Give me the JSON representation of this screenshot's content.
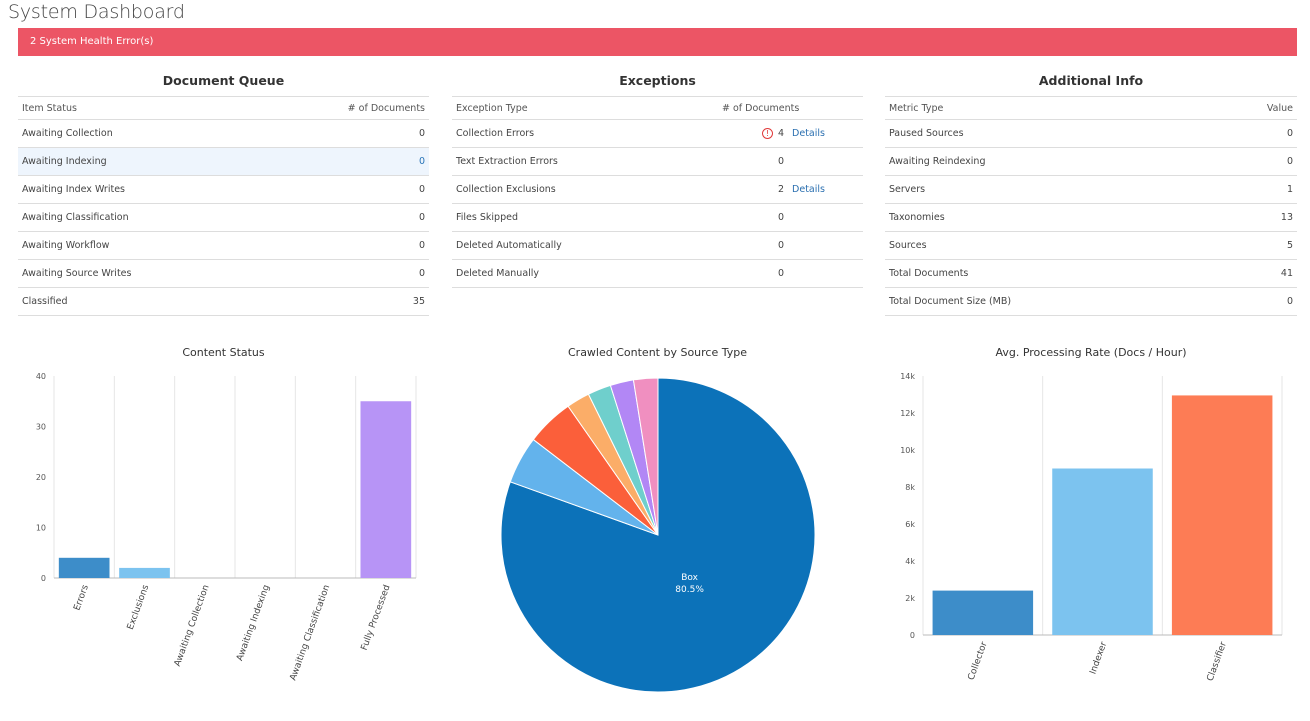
{
  "page": {
    "title": "System Dashboard"
  },
  "alert": {
    "text": "2 System Health Error(s)"
  },
  "document_queue": {
    "title": "Document Queue",
    "headers": [
      "Item Status",
      "# of Documents"
    ],
    "rows": [
      {
        "label": "Awaiting Collection",
        "value": "0"
      },
      {
        "label": "Awaiting Indexing",
        "value": "0"
      },
      {
        "label": "Awaiting Index Writes",
        "value": "0"
      },
      {
        "label": "Awaiting Classification",
        "value": "0"
      },
      {
        "label": "Awaiting Workflow",
        "value": "0"
      },
      {
        "label": "Awaiting Source Writes",
        "value": "0"
      },
      {
        "label": "Classified",
        "value": "35"
      }
    ]
  },
  "exceptions": {
    "title": "Exceptions",
    "headers": [
      "Exception Type",
      "# of Documents"
    ],
    "details_label": "Details",
    "rows": [
      {
        "label": "Collection Errors",
        "value": "4"
      },
      {
        "label": "Text Extraction Errors",
        "value": "0"
      },
      {
        "label": "Collection Exclusions",
        "value": "2"
      },
      {
        "label": "Files Skipped",
        "value": "0"
      },
      {
        "label": "Deleted Automatically",
        "value": "0"
      },
      {
        "label": "Deleted Manually",
        "value": "0"
      }
    ]
  },
  "additional_info": {
    "title": "Additional Info",
    "headers": [
      "Metric Type",
      "Value"
    ],
    "rows": [
      {
        "label": "Paused Sources",
        "value": "0"
      },
      {
        "label": "Awaiting Reindexing",
        "value": "0"
      },
      {
        "label": "Servers",
        "value": "1"
      },
      {
        "label": "Taxonomies",
        "value": "13"
      },
      {
        "label": "Sources",
        "value": "5"
      },
      {
        "label": "Total Documents",
        "value": "41"
      },
      {
        "label": "Total Document Size (MB)",
        "value": "0"
      }
    ]
  },
  "chart_data": [
    {
      "type": "bar",
      "title": "Content Status",
      "categories": [
        "Errors",
        "Exclusions",
        "Awaiting Collection",
        "Awaiting Indexing",
        "Awaiting Classification",
        "Fully Processed"
      ],
      "values": [
        4,
        2,
        0,
        0,
        0,
        35
      ],
      "colors": [
        "#3d8dc9",
        "#7cc3ef",
        "#999999",
        "#999999",
        "#999999",
        "#b794f6"
      ],
      "ylim": [
        0,
        40
      ],
      "yticks": [
        "0",
        "10",
        "20",
        "30",
        "40"
      ],
      "grid": true
    },
    {
      "type": "pie",
      "title": "Crawled Content by Source Type",
      "slices": [
        {
          "label": "Box",
          "value": 80.5,
          "display": "80.5%",
          "color": "#0c72b9"
        },
        {
          "label": "",
          "value": 4.9,
          "color": "#63b3ec"
        },
        {
          "label": "",
          "value": 4.9,
          "color": "#fb5f3a"
        },
        {
          "label": "",
          "value": 2.4,
          "color": "#fbad68"
        },
        {
          "label": "",
          "value": 2.4,
          "color": "#6fcfcc"
        },
        {
          "label": "",
          "value": 2.4,
          "color": "#b287f5"
        },
        {
          "label": "",
          "value": 2.5,
          "color": "#f08fc0"
        }
      ]
    },
    {
      "type": "bar",
      "title": "Avg. Processing Rate (Docs / Hour)",
      "categories": [
        "Collector",
        "Indexer",
        "Classifier"
      ],
      "values": [
        2400,
        9000,
        12950
      ],
      "colors": [
        "#3d8dc9",
        "#7cc3ef",
        "#fd7c55"
      ],
      "ylim": [
        0,
        14000
      ],
      "yticks": [
        "0",
        "2k",
        "4k",
        "6k",
        "8k",
        "10k",
        "12k",
        "14k"
      ],
      "grid": true
    }
  ]
}
